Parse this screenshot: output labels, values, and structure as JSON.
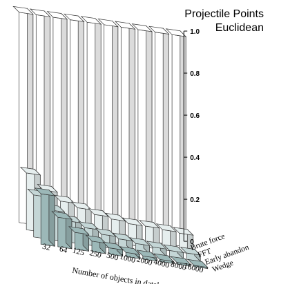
{
  "chart_data": {
    "type": "bar3d",
    "title": [
      "Projectile Points",
      "Euclidean"
    ],
    "xlabel": "Number of objects in database (m)",
    "ylabel": "",
    "zlim": [
      0,
      1.0
    ],
    "zticks": [
      "0",
      "0.2",
      "0.4",
      "0.6",
      "0.8",
      "1.0"
    ],
    "categories": [
      "32",
      "64",
      "125",
      "250",
      "500",
      "1000",
      "2000",
      "4000",
      "8000",
      "16000"
    ],
    "series": [
      {
        "name": "Brute force",
        "color": "#ffffff",
        "values": [
          1,
          1,
          1,
          1,
          1,
          1,
          1,
          1,
          1,
          1
        ]
      },
      {
        "name": "FFT",
        "color": "#e6eeee",
        "values": [
          0.27,
          0.2,
          0.16,
          0.14,
          0.12,
          0.11,
          0.1,
          0.1,
          0.095,
          0.09
        ]
      },
      {
        "name": "Early abandon",
        "color": "#c4d6d6",
        "values": [
          0.2,
          0.14,
          0.1,
          0.08,
          0.06,
          0.05,
          0.04,
          0.035,
          0.03,
          0.03
        ]
      },
      {
        "name": "Wedge",
        "color": "#9cb8b8",
        "values": [
          0.24,
          0.14,
          0.08,
          0.05,
          0.03,
          0.02,
          0.015,
          0.01,
          0.008,
          0.006
        ]
      }
    ]
  }
}
